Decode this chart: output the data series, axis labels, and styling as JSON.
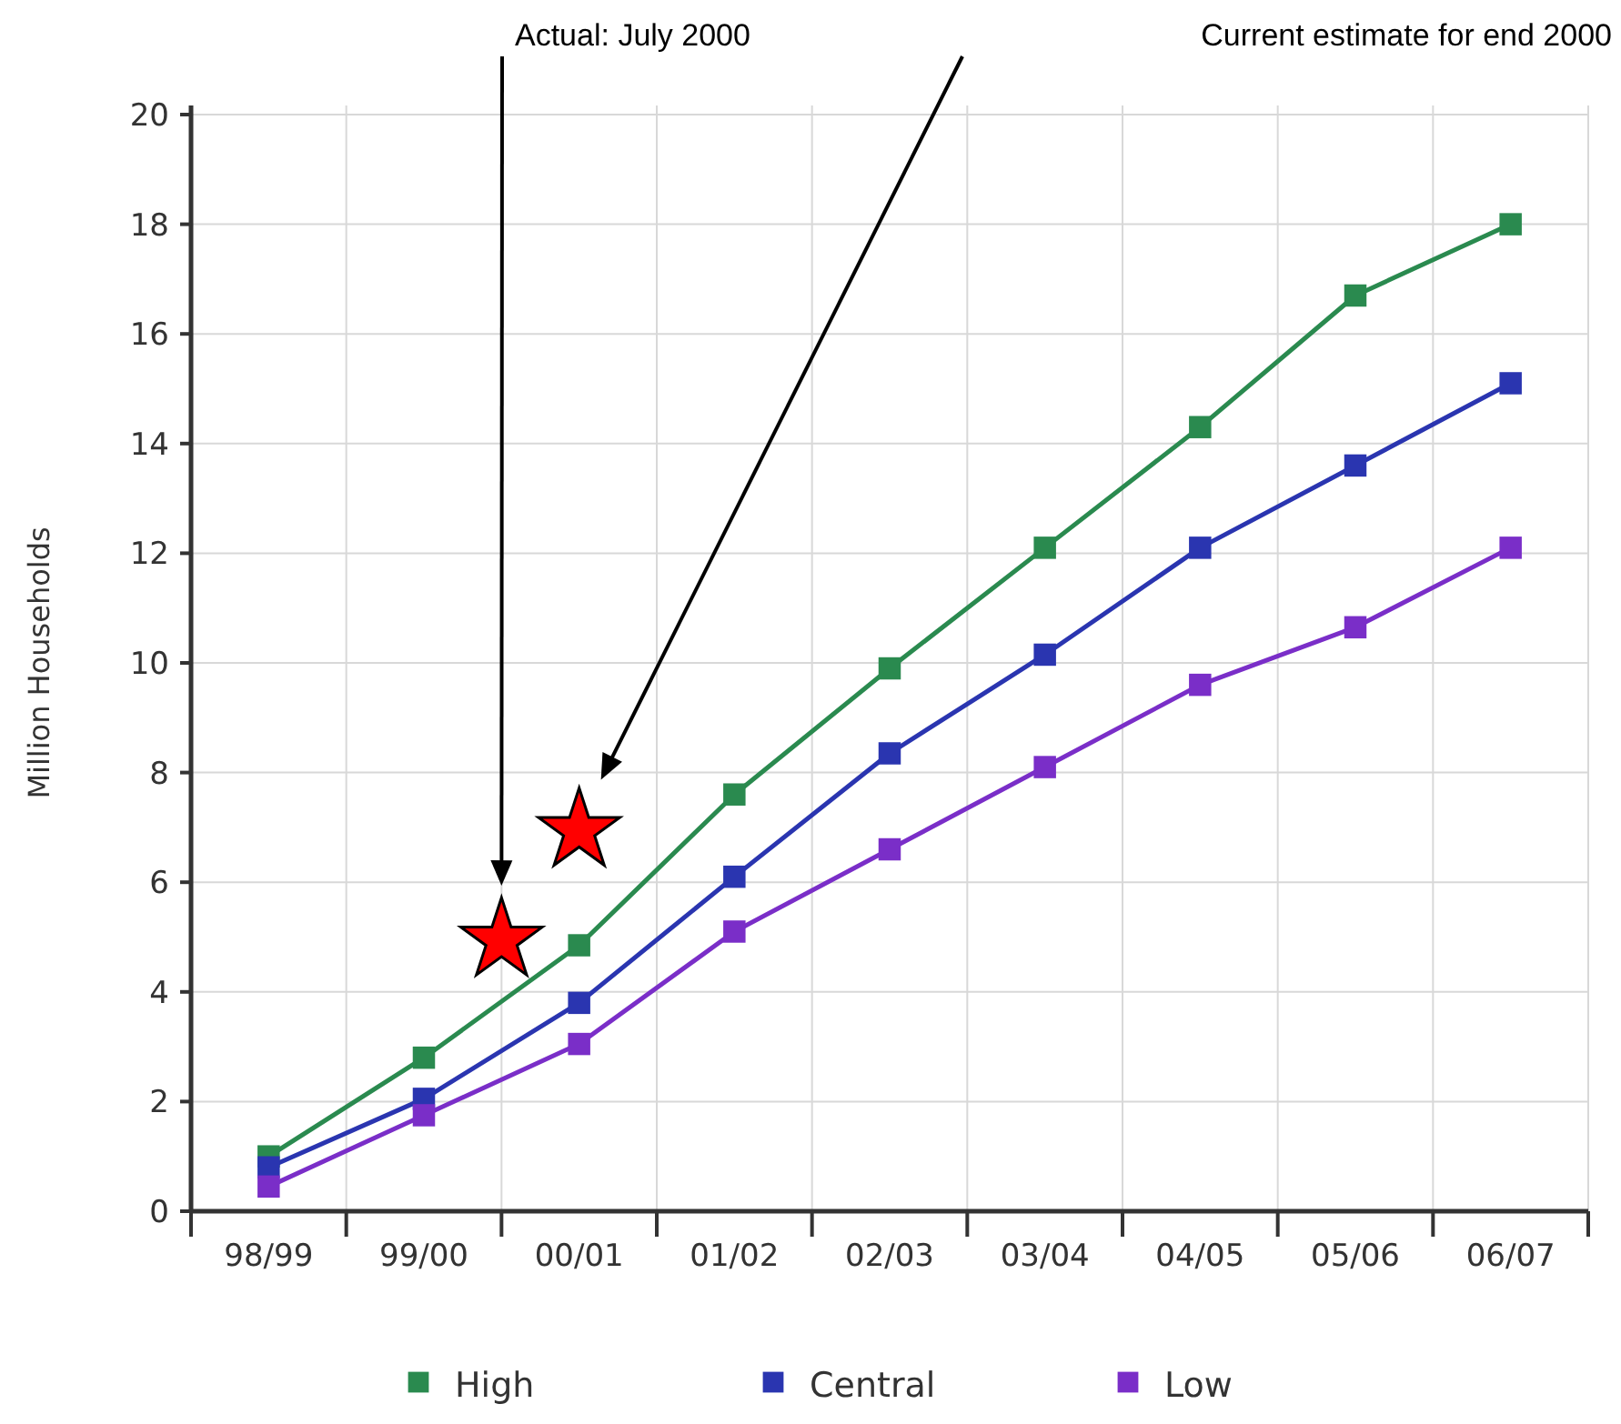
{
  "chart_data": {
    "type": "line",
    "ylabel": "Million Households",
    "categories": [
      "98/99",
      "99/00",
      "00/01",
      "01/02",
      "02/03",
      "03/04",
      "04/05",
      "05/06",
      "06/07"
    ],
    "ylim": [
      0,
      20
    ],
    "yticks": [
      0,
      2,
      4,
      6,
      8,
      10,
      12,
      14,
      16,
      18,
      20
    ],
    "grid": true,
    "legend": "bottom",
    "marker": "square",
    "series": [
      {
        "name": "High",
        "color": "#2a8a4f",
        "values": [
          1.0,
          2.8,
          4.85,
          7.6,
          9.9,
          12.1,
          14.3,
          16.7,
          18.0
        ]
      },
      {
        "name": "Central",
        "color": "#2a35b0",
        "values": [
          0.8,
          2.05,
          3.8,
          6.1,
          8.35,
          10.15,
          12.1,
          13.6,
          15.1
        ]
      },
      {
        "name": "Low",
        "color": "#7a2ec8",
        "values": [
          0.45,
          1.75,
          3.05,
          5.1,
          6.6,
          8.1,
          9.6,
          10.65,
          12.1
        ]
      }
    ],
    "annotations": [
      "Actual: July 2000",
      "Current estimate for end 2000"
    ]
  }
}
